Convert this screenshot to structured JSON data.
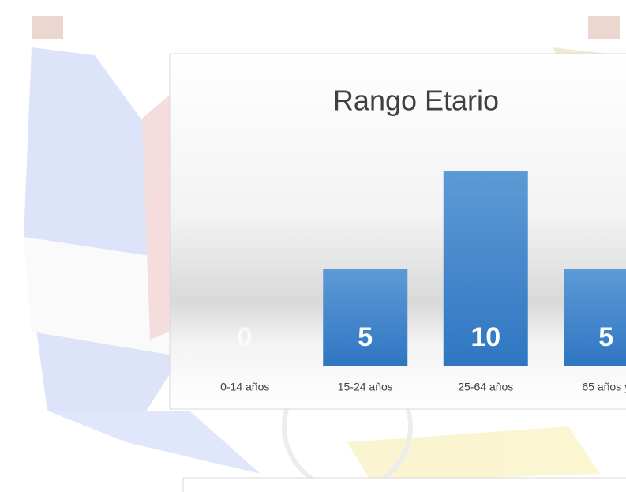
{
  "chart_data": {
    "type": "bar",
    "title": "Rango Etario",
    "categories": [
      "0-14 años",
      "15-24 años",
      "25-64 años",
      "65 años y"
    ],
    "values": [
      0,
      5,
      10,
      5
    ],
    "color": "#4a8ad0"
  }
}
